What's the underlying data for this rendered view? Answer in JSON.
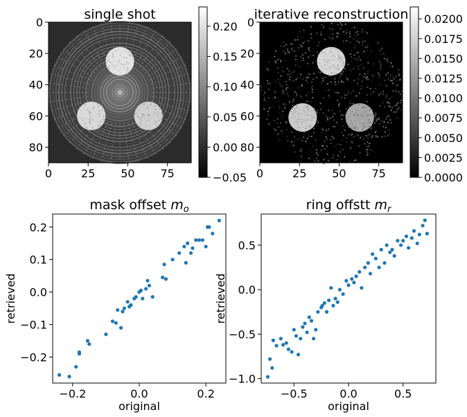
{
  "chart_data": [
    {
      "type": "heatmap",
      "title": "single shot",
      "xlim": [
        0,
        90
      ],
      "ylim": [
        90,
        0
      ],
      "xticks": [
        "0",
        "25",
        "50",
        "75"
      ],
      "yticks": [
        "0",
        "20",
        "40",
        "60",
        "80"
      ],
      "colormap": "gray",
      "colorbar": {
        "min": -0.05,
        "max": 0.232,
        "ticks": [
          "−0.05",
          "0.00",
          "0.05",
          "0.10",
          "0.15",
          "0.20"
        ]
      },
      "features": {
        "disks": [
          {
            "cx": 45,
            "cy": 25,
            "r": 9,
            "value": 0.2
          },
          {
            "cx": 27,
            "cy": 60,
            "r": 9,
            "value": 0.19
          },
          {
            "cx": 63,
            "cy": 60,
            "r": 9,
            "value": 0.18
          }
        ],
        "aperture_radius": 45,
        "ring_pattern": true
      }
    },
    {
      "type": "heatmap",
      "title": "iterative reconstruction",
      "xlim": [
        0,
        90
      ],
      "ylim": [
        90,
        0
      ],
      "xticks": [
        "0",
        "25",
        "50",
        "75"
      ],
      "yticks": [
        "0",
        "20",
        "40",
        "60",
        "80"
      ],
      "colormap": "gray",
      "colorbar": {
        "min": 0.0,
        "max": 0.0215,
        "ticks": [
          "0.0000",
          "0.0025",
          "0.0050",
          "0.0075",
          "0.0100",
          "0.0125",
          "0.0150",
          "0.0175",
          "0.0200"
        ]
      },
      "features": {
        "disks": [
          {
            "cx": 45,
            "cy": 25,
            "r": 9,
            "value": 0.018
          },
          {
            "cx": 27,
            "cy": 61,
            "r": 9,
            "value": 0.017
          },
          {
            "cx": 63,
            "cy": 61,
            "r": 9,
            "value": 0.014
          }
        ],
        "aperture_radius": 45,
        "noise": true
      }
    },
    {
      "type": "scatter",
      "title": "mask offset $m_o$",
      "title_text": "mask offset ",
      "title_math": "m",
      "title_sub": "o",
      "xlabel": "original",
      "ylabel": "retrieved",
      "xlim": [
        -0.26,
        0.26
      ],
      "ylim": [
        -0.28,
        0.24
      ],
      "xticks": [
        -0.2,
        0.0,
        0.2
      ],
      "xtick_labels": [
        "−0.2",
        "0.0",
        "0.2"
      ],
      "yticks": [
        -0.2,
        -0.1,
        0.0,
        0.1,
        0.2
      ],
      "ytick_labels": [
        "−0.2",
        "−0.1",
        "0.0",
        "0.1",
        "0.2"
      ],
      "color": "#1f77b4",
      "x": [
        -0.24,
        -0.21,
        -0.19,
        -0.18,
        -0.18,
        -0.155,
        -0.15,
        -0.1,
        -0.08,
        -0.07,
        -0.065,
        -0.055,
        -0.05,
        -0.045,
        -0.035,
        -0.03,
        -0.025,
        -0.015,
        -0.01,
        0.0,
        0.005,
        0.01,
        0.02,
        0.025,
        0.03,
        0.04,
        0.07,
        0.075,
        0.08,
        0.1,
        0.12,
        0.135,
        0.14,
        0.145,
        0.155,
        0.16,
        0.17,
        0.18,
        0.19,
        0.2,
        0.205,
        0.21,
        0.22,
        0.24
      ],
      "y": [
        -0.255,
        -0.26,
        -0.23,
        -0.185,
        -0.19,
        -0.15,
        -0.16,
        -0.13,
        -0.09,
        -0.095,
        -0.055,
        -0.11,
        -0.06,
        -0.05,
        -0.03,
        -0.045,
        -0.04,
        -0.02,
        -0.015,
        0.0,
        0.005,
        -0.02,
        0.01,
        0.035,
        0.02,
        -0.015,
        0.045,
        0.085,
        0.04,
        0.1,
        0.12,
        0.14,
        0.09,
        0.15,
        0.12,
        0.135,
        0.16,
        0.16,
        0.16,
        0.14,
        0.2,
        0.2,
        0.18,
        0.22
      ]
    },
    {
      "type": "scatter",
      "title": "ring offstt $m_r$",
      "title_text": "ring offstt ",
      "title_math": "m",
      "title_sub": "r",
      "xlabel": "original",
      "ylabel": "retrieved",
      "xlim": [
        -0.8,
        0.8
      ],
      "ylim": [
        -1.05,
        0.85
      ],
      "xticks": [
        -0.5,
        0.0,
        0.5
      ],
      "xtick_labels": [
        "−0.5",
        "0.0",
        "0.5"
      ],
      "yticks": [
        -1.0,
        -0.5,
        0.0,
        0.5
      ],
      "ytick_labels": [
        "−1.0",
        "−0.5",
        "0.0",
        "0.5"
      ],
      "color": "#1f77b4",
      "x": [
        -0.74,
        -0.72,
        -0.7,
        -0.69,
        -0.66,
        -0.62,
        -0.6,
        -0.57,
        -0.55,
        -0.52,
        -0.5,
        -0.48,
        -0.46,
        -0.44,
        -0.42,
        -0.4,
        -0.38,
        -0.36,
        -0.34,
        -0.32,
        -0.3,
        -0.28,
        -0.25,
        -0.24,
        -0.22,
        -0.2,
        -0.18,
        -0.16,
        -0.14,
        -0.12,
        -0.1,
        -0.08,
        -0.05,
        -0.02,
        0.0,
        0.03,
        0.05,
        0.07,
        0.1,
        0.12,
        0.15,
        0.18,
        0.2,
        0.22,
        0.25,
        0.28,
        0.3,
        0.33,
        0.35,
        0.38,
        0.4,
        0.42,
        0.45,
        0.48,
        0.5,
        0.53,
        0.55,
        0.58,
        0.6,
        0.63,
        0.65,
        0.68,
        0.7,
        0.72
      ],
      "y": [
        -0.98,
        -0.78,
        -0.88,
        -0.57,
        -0.63,
        -0.55,
        -0.62,
        -0.6,
        -0.67,
        -0.7,
        -0.45,
        -0.52,
        -0.73,
        -0.55,
        -0.42,
        -0.38,
        -0.48,
        -0.31,
        -0.35,
        -0.55,
        -0.45,
        -0.25,
        -0.2,
        -0.18,
        -0.15,
        -0.25,
        -0.12,
        0.02,
        -0.18,
        -0.1,
        -0.14,
        0.0,
        -0.05,
        0.1,
        0.05,
        0.12,
        0.08,
        0.15,
        0.2,
        0.02,
        0.25,
        0.3,
        0.18,
        0.4,
        0.35,
        0.25,
        0.45,
        0.3,
        0.5,
        0.42,
        0.45,
        0.38,
        0.55,
        0.5,
        0.55,
        0.6,
        0.47,
        0.58,
        0.66,
        0.52,
        0.62,
        0.72,
        0.78,
        0.63
      ]
    }
  ]
}
